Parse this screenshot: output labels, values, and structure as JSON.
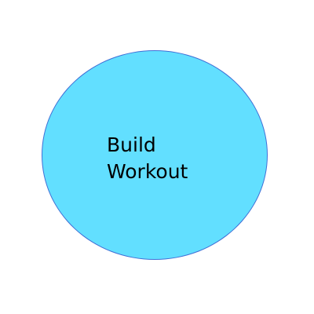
{
  "diagram": {
    "node": {
      "label_lines": [
        "Build",
        "Workout"
      ],
      "fill_color": "#62dfff",
      "border_color": "#3f6fd6"
    }
  }
}
